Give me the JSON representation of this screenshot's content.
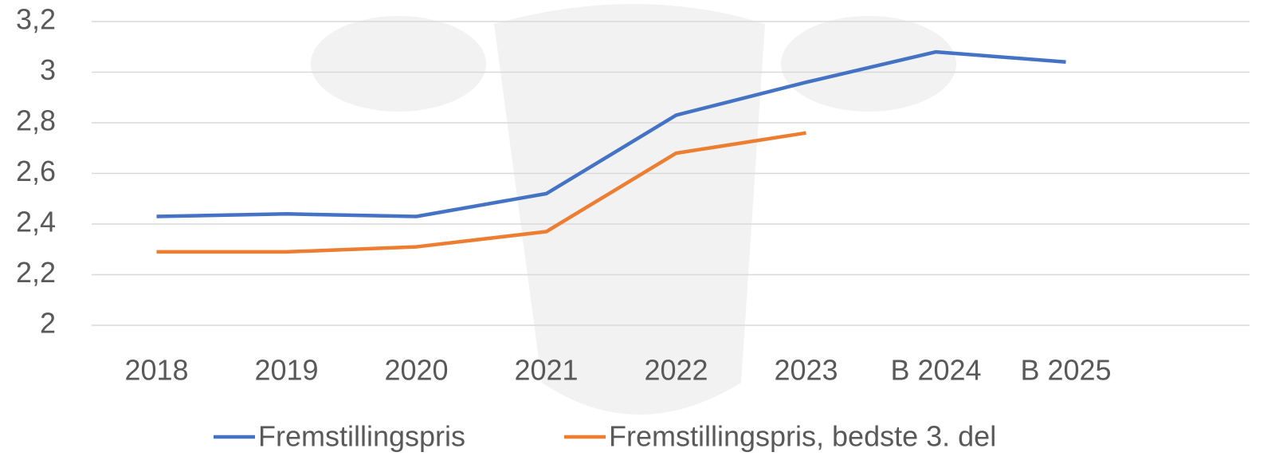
{
  "chart_data": {
    "type": "line",
    "categories": [
      "2018",
      "2019",
      "2020",
      "2021",
      "2022",
      "2023",
      "B 2024",
      "B 2025"
    ],
    "series": [
      {
        "name": "Fremstillingspris",
        "color": "#4472c4",
        "values": [
          2.43,
          2.44,
          2.43,
          2.52,
          2.83,
          2.96,
          3.08,
          3.04
        ]
      },
      {
        "name": "Fremstillingspris, bedste 3. del",
        "color": "#ed7d31",
        "values": [
          2.29,
          2.29,
          2.31,
          2.37,
          2.68,
          2.76,
          null,
          null
        ]
      }
    ],
    "ylim": [
      2,
      3.2
    ],
    "yticks": [
      2,
      {
        "value": 2.2,
        "label": "2,2"
      },
      {
        "value": 2.4,
        "label": "2,4"
      },
      {
        "value": 2.6,
        "label": "2,6"
      },
      {
        "value": 2.8,
        "label": "2,8"
      },
      3,
      {
        "value": 3.2,
        "label": "3,2"
      }
    ],
    "grid": true,
    "legend": "bottom"
  }
}
